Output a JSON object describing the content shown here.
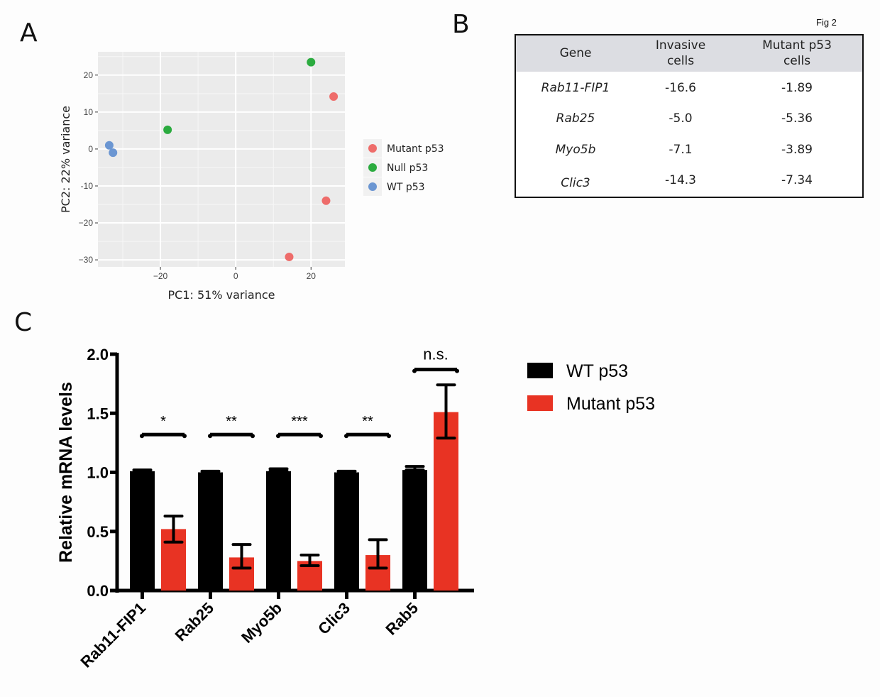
{
  "figure_label": "Fig 2",
  "panel_letters": {
    "a": "A",
    "b": "B",
    "c": "C"
  },
  "colors": {
    "mutant": "#ee6c6a",
    "null": "#2bab3f",
    "wt": "#6b96d2",
    "bar_wt": "#000000",
    "bar_mutant": "#e83323",
    "plot_bg": "#ebebeb",
    "grid": "#ffffff"
  },
  "chart_data": [
    {
      "type": "scatter",
      "title": "",
      "xlabel": "PC1: 51% variance",
      "ylabel": "PC2: 22% variance",
      "xlim": [
        -36.6,
        29
      ],
      "ylim": [
        -31.9,
        26.3
      ],
      "xticks": [
        -20,
        0,
        20
      ],
      "xtick_labels": [
        "−20",
        "0",
        "20"
      ],
      "yticks": [
        20,
        10,
        0,
        -10,
        -20,
        -30
      ],
      "ytick_labels": [
        "20",
        "10",
        "0",
        "-10",
        "−20",
        "−30"
      ],
      "grid": true,
      "legend_position": "right",
      "series": [
        {
          "name": "Mutant p53",
          "color_key": "mutant",
          "points": [
            [
              26,
              14.2
            ],
            [
              24,
              -14
            ],
            [
              14.2,
              -29.2
            ]
          ]
        },
        {
          "name": "Null p53",
          "color_key": "null",
          "points": [
            [
              20,
              23.5
            ],
            [
              -18.1,
              5.2
            ]
          ]
        },
        {
          "name": "WT p53",
          "color_key": "wt",
          "points": [
            [
              -33.6,
              1.0
            ],
            [
              -32.6,
              -1.0
            ]
          ]
        }
      ]
    },
    {
      "type": "table",
      "columns": [
        "Gene",
        "Invasive\ncells",
        "Mutant p53\ncells"
      ],
      "column_lines": [
        [
          "Gene"
        ],
        [
          "Invasive",
          "cells"
        ],
        [
          "Mutant p53",
          "cells"
        ]
      ],
      "rows": [
        [
          "Rab11-FIP1",
          "-16.6",
          "-1.89"
        ],
        [
          "Rab25",
          "-5.0",
          "-5.36"
        ],
        [
          "Myo5b",
          "-7.1",
          "-3.89"
        ],
        [
          "Clic3",
          "-14.3",
          "-7.34"
        ]
      ]
    },
    {
      "type": "bar",
      "title": "",
      "xlabel": "",
      "ylabel": "Relative mRNA levels",
      "ylim": [
        0,
        2.0
      ],
      "yticks": [
        0,
        0.5,
        1.0,
        1.5,
        2.0
      ],
      "ytick_labels": [
        "0.0",
        "0.5",
        "1.0",
        "1.5",
        "2.0"
      ],
      "categories": [
        "Rab11-FIP1",
        "Rab25",
        "Myo5b",
        "Clic3",
        "Rab5"
      ],
      "legend_position": "right",
      "series": [
        {
          "name": "WT p53",
          "color_key": "bar_wt",
          "values": [
            1.01,
            1.0,
            1.01,
            1.0,
            1.02
          ],
          "err_high": [
            1.02,
            1.01,
            1.03,
            1.01,
            1.05
          ],
          "err_low": [
            1.01,
            1.0,
            1.01,
            1.0,
            1.02
          ]
        },
        {
          "name": "Mutant p53",
          "color_key": "bar_mutant",
          "values": [
            0.52,
            0.28,
            0.25,
            0.3,
            1.51
          ],
          "err_high": [
            0.63,
            0.39,
            0.3,
            0.43,
            1.74
          ],
          "err_low": [
            0.41,
            0.19,
            0.21,
            0.19,
            1.29
          ]
        }
      ],
      "significance": [
        {
          "label": "*",
          "bracket_y": 1.32
        },
        {
          "label": "**",
          "bracket_y": 1.32
        },
        {
          "label": "***",
          "bracket_y": 1.32
        },
        {
          "label": "**",
          "bracket_y": 1.32
        },
        {
          "label": "n.s.",
          "bracket_y": 1.87
        }
      ]
    }
  ]
}
